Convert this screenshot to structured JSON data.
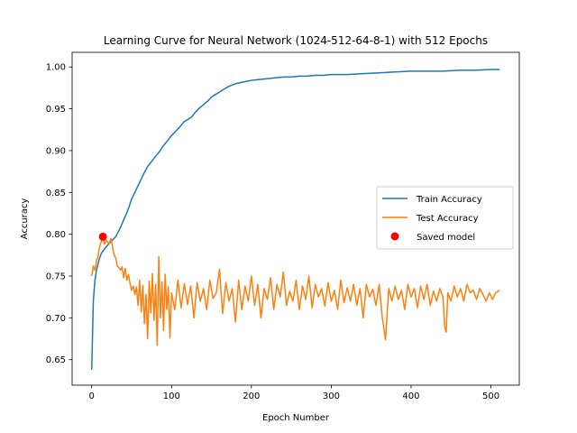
{
  "chart_data": {
    "type": "line",
    "title": "Learning Curve for Neural Network (1024-512-64-8-1) with 512 Epochs",
    "xlabel": "Epoch Number",
    "ylabel": "Accuracy",
    "xlim": [
      -24.55,
      535.55
    ],
    "ylim": [
      0.6195,
      1.0175
    ],
    "xticks": [
      0,
      100,
      200,
      300,
      400,
      500
    ],
    "xtick_labels": [
      "0",
      "100",
      "200",
      "300",
      "400",
      "500"
    ],
    "yticks": [
      0.65,
      0.7,
      0.75,
      0.8,
      0.85,
      0.9,
      0.95,
      1.0
    ],
    "ytick_labels": [
      "0.65",
      "0.70",
      "0.75",
      "0.80",
      "0.85",
      "0.90",
      "0.95",
      "1.00"
    ],
    "grid": false,
    "legend_position": "center-right",
    "series": [
      {
        "name": "Train Accuracy",
        "color": "#1f77b4",
        "points": [
          [
            0,
            0.638
          ],
          [
            2,
            0.72
          ],
          [
            4,
            0.745
          ],
          [
            6,
            0.757
          ],
          [
            8,
            0.765
          ],
          [
            10,
            0.772
          ],
          [
            12,
            0.777
          ],
          [
            15,
            0.781
          ],
          [
            18,
            0.785
          ],
          [
            22,
            0.789
          ],
          [
            26,
            0.793
          ],
          [
            30,
            0.797
          ],
          [
            35,
            0.806
          ],
          [
            40,
            0.817
          ],
          [
            45,
            0.828
          ],
          [
            50,
            0.842
          ],
          [
            55,
            0.852
          ],
          [
            60,
            0.862
          ],
          [
            65,
            0.872
          ],
          [
            70,
            0.881
          ],
          [
            75,
            0.887
          ],
          [
            80,
            0.893
          ],
          [
            85,
            0.899
          ],
          [
            90,
            0.906
          ],
          [
            95,
            0.912
          ],
          [
            100,
            0.918
          ],
          [
            105,
            0.923
          ],
          [
            110,
            0.928
          ],
          [
            115,
            0.934
          ],
          [
            120,
            0.937
          ],
          [
            125,
            0.94
          ],
          [
            130,
            0.946
          ],
          [
            135,
            0.951
          ],
          [
            140,
            0.955
          ],
          [
            145,
            0.959
          ],
          [
            150,
            0.964
          ],
          [
            155,
            0.967
          ],
          [
            160,
            0.97
          ],
          [
            165,
            0.973
          ],
          [
            170,
            0.976
          ],
          [
            175,
            0.978
          ],
          [
            180,
            0.98
          ],
          [
            190,
            0.982
          ],
          [
            200,
            0.984
          ],
          [
            210,
            0.985
          ],
          [
            220,
            0.986
          ],
          [
            230,
            0.987
          ],
          [
            240,
            0.988
          ],
          [
            250,
            0.988
          ],
          [
            260,
            0.989
          ],
          [
            270,
            0.989
          ],
          [
            280,
            0.99
          ],
          [
            290,
            0.99
          ],
          [
            300,
            0.991
          ],
          [
            320,
            0.991
          ],
          [
            340,
            0.992
          ],
          [
            360,
            0.993
          ],
          [
            380,
            0.994
          ],
          [
            400,
            0.995
          ],
          [
            420,
            0.995
          ],
          [
            440,
            0.995
          ],
          [
            460,
            0.996
          ],
          [
            480,
            0.996
          ],
          [
            500,
            0.997
          ],
          [
            511,
            0.997
          ]
        ]
      },
      {
        "name": "Test Accuracy",
        "color": "#ff7f0e",
        "points": [
          [
            0,
            0.75
          ],
          [
            2,
            0.762
          ],
          [
            4,
            0.757
          ],
          [
            6,
            0.768
          ],
          [
            8,
            0.774
          ],
          [
            10,
            0.786
          ],
          [
            12,
            0.791
          ],
          [
            14,
            0.797
          ],
          [
            16,
            0.788
          ],
          [
            18,
            0.793
          ],
          [
            20,
            0.79
          ],
          [
            22,
            0.789
          ],
          [
            24,
            0.795
          ],
          [
            26,
            0.785
          ],
          [
            28,
            0.775
          ],
          [
            30,
            0.772
          ],
          [
            32,
            0.762
          ],
          [
            34,
            0.76
          ],
          [
            36,
            0.757
          ],
          [
            38,
            0.761
          ],
          [
            40,
            0.748
          ],
          [
            42,
            0.759
          ],
          [
            44,
            0.745
          ],
          [
            46,
            0.752
          ],
          [
            48,
            0.741
          ],
          [
            50,
            0.733
          ],
          [
            52,
            0.738
          ],
          [
            54,
            0.728
          ],
          [
            56,
            0.737
          ],
          [
            58,
            0.715
          ],
          [
            60,
            0.745
          ],
          [
            62,
            0.707
          ],
          [
            64,
            0.739
          ],
          [
            66,
            0.693
          ],
          [
            68,
            0.728
          ],
          [
            70,
            0.675
          ],
          [
            72,
            0.744
          ],
          [
            74,
            0.706
          ],
          [
            76,
            0.753
          ],
          [
            78,
            0.697
          ],
          [
            80,
            0.74
          ],
          [
            82,
            0.667
          ],
          [
            84,
            0.773
          ],
          [
            86,
            0.7
          ],
          [
            88,
            0.743
          ],
          [
            90,
            0.685
          ],
          [
            92,
            0.752
          ],
          [
            94,
            0.71
          ],
          [
            96,
            0.737
          ],
          [
            98,
            0.676
          ],
          [
            100,
            0.73
          ],
          [
            104,
            0.71
          ],
          [
            108,
            0.745
          ],
          [
            112,
            0.712
          ],
          [
            116,
            0.741
          ],
          [
            120,
            0.716
          ],
          [
            124,
            0.738
          ],
          [
            128,
            0.7
          ],
          [
            132,
            0.742
          ],
          [
            136,
            0.72
          ],
          [
            140,
            0.735
          ],
          [
            144,
            0.71
          ],
          [
            148,
            0.745
          ],
          [
            152,
            0.723
          ],
          [
            156,
            0.73
          ],
          [
            160,
            0.758
          ],
          [
            164,
            0.705
          ],
          [
            168,
            0.742
          ],
          [
            172,
            0.72
          ],
          [
            176,
            0.735
          ],
          [
            180,
            0.695
          ],
          [
            184,
            0.745
          ],
          [
            188,
            0.71
          ],
          [
            192,
            0.738
          ],
          [
            196,
            0.72
          ],
          [
            200,
            0.75
          ],
          [
            204,
            0.715
          ],
          [
            208,
            0.74
          ],
          [
            212,
            0.7
          ],
          [
            216,
            0.735
          ],
          [
            220,
            0.722
          ],
          [
            224,
            0.748
          ],
          [
            228,
            0.71
          ],
          [
            232,
            0.74
          ],
          [
            236,
            0.725
          ],
          [
            240,
            0.755
          ],
          [
            244,
            0.715
          ],
          [
            248,
            0.732
          ],
          [
            252,
            0.72
          ],
          [
            256,
            0.745
          ],
          [
            260,
            0.71
          ],
          [
            264,
            0.738
          ],
          [
            268,
            0.722
          ],
          [
            272,
            0.75
          ],
          [
            276,
            0.712
          ],
          [
            280,
            0.74
          ],
          [
            284,
            0.725
          ],
          [
            288,
            0.735
          ],
          [
            292,
            0.714
          ],
          [
            296,
            0.742
          ],
          [
            300,
            0.72
          ],
          [
            304,
            0.733
          ],
          [
            308,
            0.71
          ],
          [
            312,
            0.745
          ],
          [
            316,
            0.718
          ],
          [
            320,
            0.736
          ],
          [
            324,
            0.72
          ],
          [
            328,
            0.74
          ],
          [
            332,
            0.715
          ],
          [
            336,
            0.735
          ],
          [
            340,
            0.7
          ],
          [
            344,
            0.74
          ],
          [
            348,
            0.725
          ],
          [
            352,
            0.734
          ],
          [
            356,
            0.715
          ],
          [
            360,
            0.74
          ],
          [
            364,
            0.7
          ],
          [
            368,
            0.674
          ],
          [
            372,
            0.735
          ],
          [
            376,
            0.72
          ],
          [
            380,
            0.738
          ],
          [
            384,
            0.722
          ],
          [
            388,
            0.733
          ],
          [
            392,
            0.71
          ],
          [
            396,
            0.74
          ],
          [
            400,
            0.725
          ],
          [
            404,
            0.735
          ],
          [
            408,
            0.712
          ],
          [
            412,
            0.738
          ],
          [
            416,
            0.722
          ],
          [
            420,
            0.74
          ],
          [
            424,
            0.715
          ],
          [
            428,
            0.732
          ],
          [
            432,
            0.72
          ],
          [
            436,
            0.735
          ],
          [
            440,
            0.725
          ],
          [
            442,
            0.69
          ],
          [
            444,
            0.683
          ],
          [
            446,
            0.73
          ],
          [
            450,
            0.72
          ],
          [
            454,
            0.738
          ],
          [
            458,
            0.725
          ],
          [
            462,
            0.735
          ],
          [
            466,
            0.72
          ],
          [
            470,
            0.74
          ],
          [
            474,
            0.73
          ],
          [
            478,
            0.733
          ],
          [
            482,
            0.722
          ],
          [
            486,
            0.735
          ],
          [
            490,
            0.728
          ],
          [
            494,
            0.72
          ],
          [
            498,
            0.73
          ],
          [
            502,
            0.722
          ],
          [
            506,
            0.73
          ],
          [
            511,
            0.733
          ]
        ]
      }
    ],
    "markers": [
      {
        "name": "Saved model",
        "color": "#ff0000",
        "x": 14,
        "y": 0.797
      }
    ]
  }
}
